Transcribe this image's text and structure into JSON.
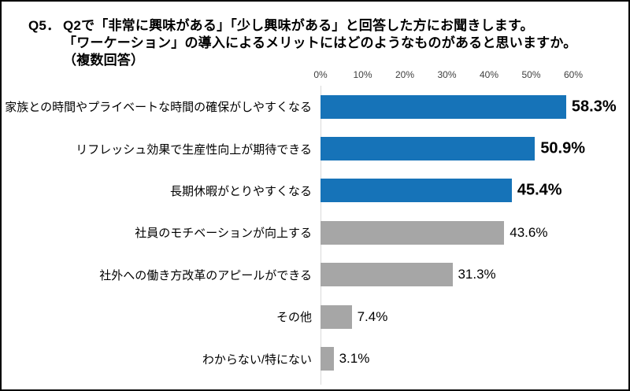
{
  "title": {
    "prefix": "Q5．",
    "line1": "Q2で「非常に興味がある」「少し興味がある」と回答した方にお聞きします。",
    "line2": "「ワーケーション」の導入によるメリットにはどのようなものがあると思いますか。",
    "line3": "（複数回答）"
  },
  "chart_data": {
    "type": "bar",
    "orientation": "horizontal",
    "title": "Q5．Q2で「非常に興味がある」「少し興味がある」と回答した方にお聞きします。「ワーケーション」の導入によるメリットにはどのようなものがあると思いますか。（複数回答）",
    "xlabel": "",
    "ylabel": "",
    "xlim": [
      0,
      60
    ],
    "x_ticks": [
      "0%",
      "10%",
      "20%",
      "30%",
      "40%",
      "50%",
      "60%"
    ],
    "grid": "single-baseline-at-zero",
    "legend": "none",
    "categories": [
      "家族との時間やプライベートな時間の確保がしやすくなる",
      "リフレッシュ効果で生産性向上が期待できる",
      "長期休暇がとりやすくなる",
      "社員のモチベーションが向上する",
      "社外への働き方改革のアピールができる",
      "その他",
      "わからない/特にない"
    ],
    "values": [
      58.3,
      50.9,
      45.4,
      43.6,
      31.3,
      7.4,
      3.1
    ],
    "value_labels": [
      "58.3%",
      "50.9%",
      "45.4%",
      "43.6%",
      "31.3%",
      "7.4%",
      "3.1%"
    ],
    "emphasized": [
      true,
      true,
      true,
      false,
      false,
      false,
      false
    ],
    "colors": {
      "highlight_bar": "#1673b8",
      "default_bar": "#a6a6a6",
      "gridline": "#d9d9d9",
      "tick_text": "#404040",
      "text": "#000000"
    }
  }
}
